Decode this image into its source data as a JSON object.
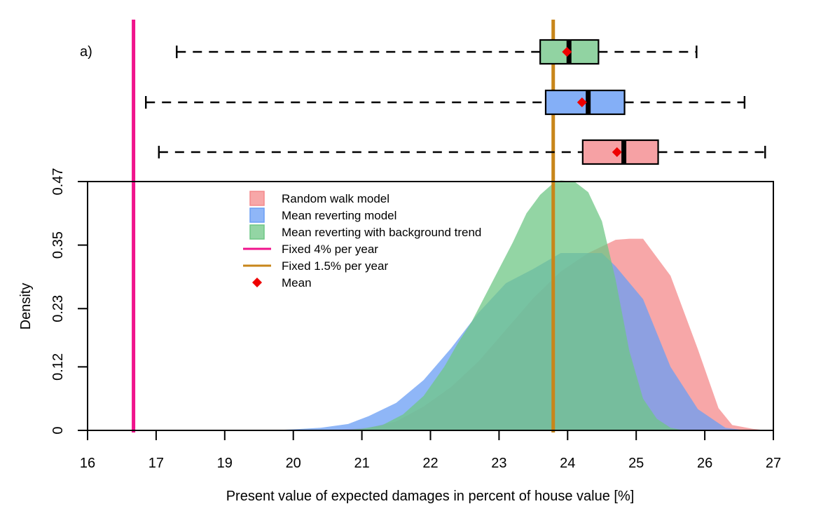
{
  "chart_data": {
    "type": "area",
    "panel_label": "a)",
    "xlabel": "Present value of expected damages in percent of house value [%]",
    "ylabel": "Density",
    "x_ticks": [
      "16",
      "17",
      "19",
      "20",
      "21",
      "22",
      "23",
      "24",
      "25",
      "26",
      "27"
    ],
    "y_ticks": [
      "0",
      "0.12",
      "0.23",
      "0.35",
      "0.47"
    ],
    "ylim": [
      0,
      0.47
    ],
    "x_axis_note": "axis labelled 16..27 with non-uniform tick spacing; curve x values below are expressed in the tick-label units",
    "legend": {
      "position": "top-left",
      "entries": [
        {
          "label": "Random walk model",
          "kind": "fill",
          "color": "#F4898B",
          "series": "rw"
        },
        {
          "label": "Mean reverting model",
          "kind": "fill",
          "color": "#6A9EF4",
          "series": "mr"
        },
        {
          "label": "Mean reverting with background trend",
          "kind": "fill",
          "color": "#6FC785",
          "series": "mrbt"
        },
        {
          "label": "Fixed 4% per year",
          "kind": "line",
          "color": "#F0138C",
          "series": "fixed4"
        },
        {
          "label": "Fixed 1.5% per year",
          "kind": "line",
          "color": "#C8861A",
          "series": "fixed15"
        },
        {
          "label": "Mean",
          "kind": "marker",
          "color": "#EE0000",
          "series": "mean"
        }
      ]
    },
    "series": [
      {
        "id": "rw",
        "color": "#F4898B",
        "opacity": 0.75,
        "x": [
          20.0,
          20.7,
          21.1,
          21.5,
          21.9,
          22.3,
          22.7,
          23.1,
          23.5,
          23.9,
          24.3,
          24.7,
          24.9,
          25.1,
          25.5,
          25.9,
          26.2,
          26.4,
          26.7,
          26.9
        ],
        "y": [
          0.0,
          0.002,
          0.005,
          0.017,
          0.045,
          0.082,
          0.13,
          0.19,
          0.25,
          0.3,
          0.335,
          0.36,
          0.362,
          0.362,
          0.292,
          0.153,
          0.042,
          0.01,
          0.003,
          0.0
        ]
      },
      {
        "id": "mr",
        "color": "#6A9EF4",
        "opacity": 0.75,
        "x": [
          19.6,
          20.0,
          20.4,
          20.8,
          21.1,
          21.5,
          21.9,
          22.3,
          22.7,
          23.1,
          23.5,
          23.9,
          24.3,
          24.5,
          24.7,
          25.1,
          25.5,
          25.9,
          26.3,
          26.6
        ],
        "y": [
          0.0,
          0.002,
          0.005,
          0.012,
          0.027,
          0.052,
          0.095,
          0.155,
          0.222,
          0.278,
          0.305,
          0.335,
          0.335,
          0.335,
          0.31,
          0.248,
          0.12,
          0.04,
          0.005,
          0.0
        ]
      },
      {
        "id": "mrbt",
        "color": "#6FC785",
        "opacity": 0.75,
        "x": [
          20.7,
          21.0,
          21.3,
          21.6,
          21.9,
          22.2,
          22.4,
          22.6,
          22.8,
          23.0,
          23.2,
          23.4,
          23.6,
          23.8,
          23.9,
          24.1,
          24.3,
          24.5,
          24.7,
          24.9,
          25.1,
          25.3,
          25.5,
          25.7
        ],
        "y": [
          0.0,
          0.003,
          0.01,
          0.03,
          0.065,
          0.12,
          0.165,
          0.205,
          0.255,
          0.305,
          0.355,
          0.41,
          0.445,
          0.468,
          0.472,
          0.47,
          0.45,
          0.395,
          0.285,
          0.15,
          0.06,
          0.022,
          0.005,
          0.0
        ]
      }
    ],
    "vertical_lines": [
      {
        "id": "fixed4",
        "x": 16.67,
        "color": "#F0138C"
      },
      {
        "id": "fixed15",
        "x": 23.79,
        "color": "#C8861A"
      }
    ],
    "boxplots": [
      {
        "series": "mrbt",
        "color": "#91D3A2",
        "whisker_low": 17.6,
        "q1": 23.6,
        "median": 24.02,
        "q3": 24.45,
        "whisker_high": 25.88,
        "mean": 23.99
      },
      {
        "series": "mr",
        "color": "#84AFF7",
        "whisker_low": 16.85,
        "q1": 23.68,
        "median": 24.3,
        "q3": 24.83,
        "whisker_high": 26.58,
        "mean": 24.21
      },
      {
        "series": "rw",
        "color": "#F6A1A4",
        "whisker_low": 17.08,
        "q1": 24.22,
        "median": 24.82,
        "q3": 25.32,
        "whisker_high": 26.88,
        "mean": 24.72
      }
    ]
  }
}
